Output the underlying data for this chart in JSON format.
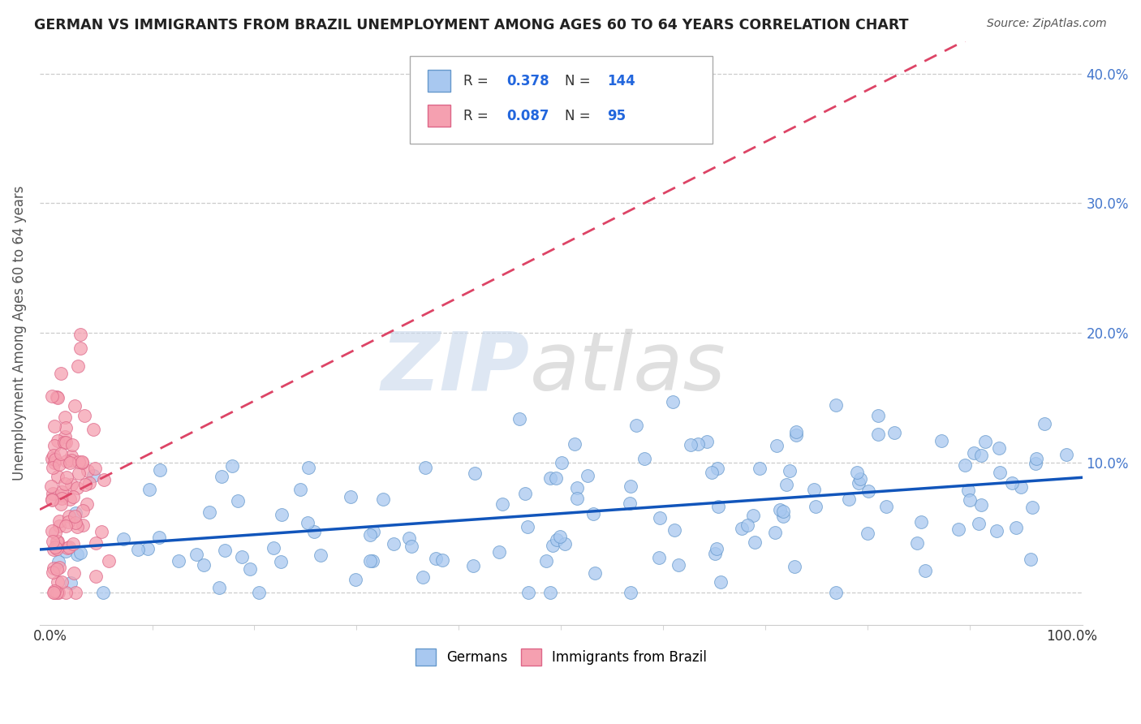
{
  "title": "GERMAN VS IMMIGRANTS FROM BRAZIL UNEMPLOYMENT AMONG AGES 60 TO 64 YEARS CORRELATION CHART",
  "source": "Source: ZipAtlas.com",
  "ylabel": "Unemployment Among Ages 60 to 64 years",
  "xlim": [
    -0.01,
    1.01
  ],
  "ylim": [
    -0.025,
    0.425
  ],
  "yticks": [
    0.0,
    0.1,
    0.2,
    0.3,
    0.4
  ],
  "ytick_labels_right": [
    "",
    "10.0%",
    "20.0%",
    "30.0%",
    "40.0%"
  ],
  "german_color": "#a8c8f0",
  "brazil_color": "#f5a0b0",
  "german_edge_color": "#6699cc",
  "brazil_edge_color": "#dd6688",
  "german_line_color": "#1155bb",
  "brazil_line_color": "#dd4466",
  "R_german": 0.378,
  "N_german": 144,
  "R_brazil": 0.087,
  "N_brazil": 95,
  "background_color": "#ffffff",
  "grid_color": "#cccccc",
  "legend_label_german": "Germans",
  "legend_label_brazil": "Immigrants from Brazil"
}
